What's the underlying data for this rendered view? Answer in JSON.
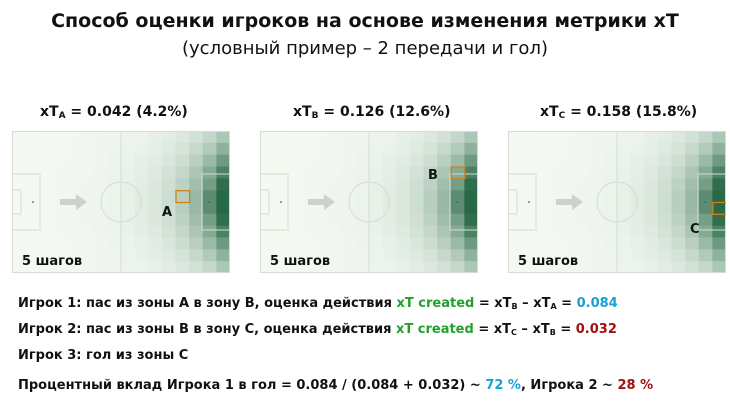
{
  "header": {
    "title": "Способ оценки игроков на основе изменения метрики xT",
    "subtitle": "(условный пример – 2 передачи и гол)"
  },
  "panels": [
    {
      "xt_prefix": "xT",
      "sub": "A",
      "value_text": " = 0.042 (4.2%)",
      "steps": "5 шагов",
      "zone": "A"
    },
    {
      "xt_prefix": "xT",
      "sub": "B",
      "value_text": " = 0.126 (12.6%)",
      "steps": "5 шагов",
      "zone": "B"
    },
    {
      "xt_prefix": "xT",
      "sub": "C",
      "value_text": " = 0.158 (15.8%)",
      "steps": "5 шагов",
      "zone": "C"
    }
  ],
  "notes": {
    "line1": {
      "prefix": "Игрок 1: пас из зоны A в зону B, оценка действия ",
      "metric": "xT created",
      "eq": " = xT",
      "sub1": "B",
      "minus": " – xT",
      "sub2": "A",
      "eq2": " =  ",
      "value": "0.084"
    },
    "line2": {
      "prefix": "Игрок 2: пас из зоны B в зону C, оценка действия ",
      "metric": "xT created",
      "eq": " = xT",
      "sub1": "C",
      "minus": " – xT",
      "sub2": "B",
      "eq2": " =  ",
      "value": "0.032"
    },
    "line3": "Игрок 3: гол из зоны C",
    "line4": {
      "prefix": "Процентный вклад Игрока 1 в гол = 0.084 / (0.084 + 0.032) ~ ",
      "p1": "72 %",
      "mid": ", Игрока 2 ~ ",
      "p2": "28 %"
    }
  },
  "colors": {
    "metric": "#22a02e",
    "value1": "#1a9fd6",
    "value2": "#a01010",
    "zone_box": "#d0801a",
    "heat_dark": "#2e6b45"
  }
}
